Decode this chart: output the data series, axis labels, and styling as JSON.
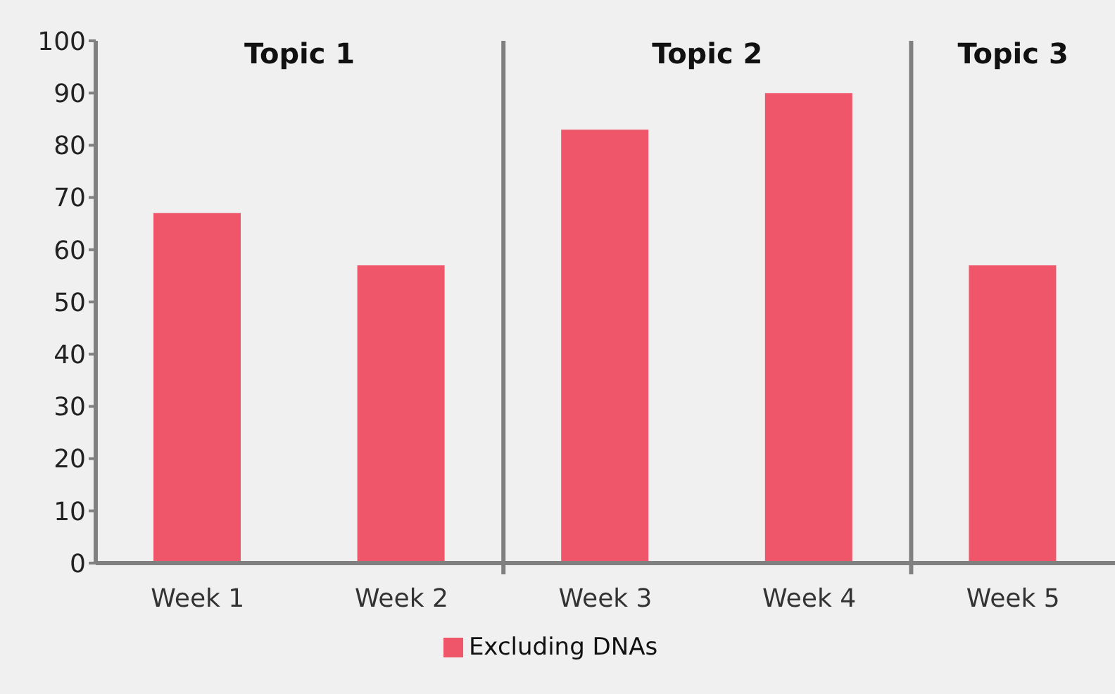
{
  "chart_data": {
    "type": "bar",
    "categories": [
      "Week 1",
      "Week 2",
      "Week 3",
      "Week 4",
      "Week 5"
    ],
    "series": [
      {
        "name": "Excluding DNAs",
        "color": "#f0566a",
        "values": [
          67,
          57,
          83,
          90,
          57
        ]
      }
    ],
    "ylim": [
      0,
      100
    ],
    "yticks": [
      0,
      10,
      20,
      30,
      40,
      50,
      60,
      70,
      80,
      90,
      100
    ],
    "legend": "bottom",
    "annotations": [
      "Topic 1",
      "Topic 2",
      "Topic 3"
    ]
  }
}
